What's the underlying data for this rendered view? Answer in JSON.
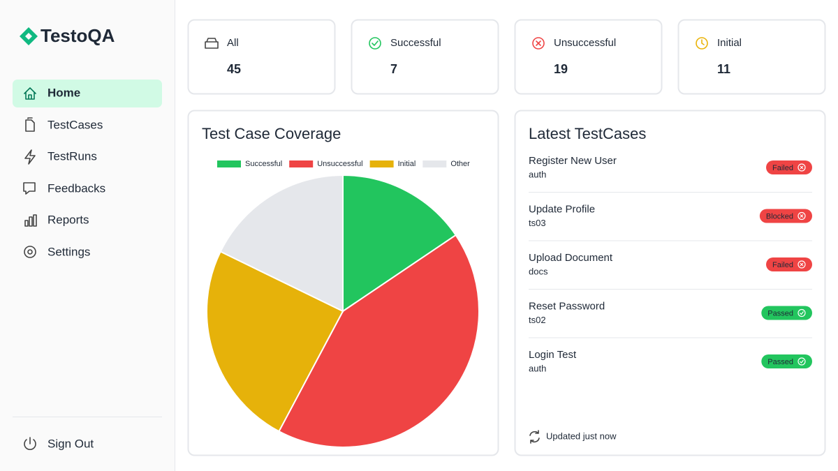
{
  "brand": "TestoQA",
  "nav": [
    "Home",
    "TestCases",
    "TestRuns",
    "Feedbacks",
    "Reports",
    "Settings"
  ],
  "sign_out": "Sign Out",
  "stats": [
    {
      "label": "All",
      "value": 45
    },
    {
      "label": "Successful",
      "value": 7
    },
    {
      "label": "Unsuccessful",
      "value": 19
    },
    {
      "label": "Initial",
      "value": 11
    }
  ],
  "chart_data": {
    "type": "pie",
    "title": "Test Case Coverage",
    "categories": [
      "Successful",
      "Unsuccessful",
      "Initial",
      "Other"
    ],
    "values": [
      7,
      19,
      11,
      8
    ],
    "colors": [
      "#22c55e",
      "#ef4444",
      "#e6b20a",
      "#e5e7eb"
    ],
    "legend": "top"
  },
  "latest": {
    "title": "Latest TestCases",
    "items": [
      {
        "name": "Register New User",
        "tag": "auth",
        "status": "Failed",
        "color": "#ef4444",
        "icon": "x"
      },
      {
        "name": "Update Profile",
        "tag": "ts03",
        "status": "Blocked",
        "color": "#ef4444",
        "icon": "x"
      },
      {
        "name": "Upload Document",
        "tag": "docs",
        "status": "Failed",
        "color": "#ef4444",
        "icon": "x"
      },
      {
        "name": "Reset Password",
        "tag": "ts02",
        "status": "Passed",
        "color": "#22c55e",
        "icon": "check"
      },
      {
        "name": "Login Test",
        "tag": "auth",
        "status": "Passed",
        "color": "#22c55e",
        "icon": "check"
      }
    ],
    "footer": "Updated just now"
  }
}
